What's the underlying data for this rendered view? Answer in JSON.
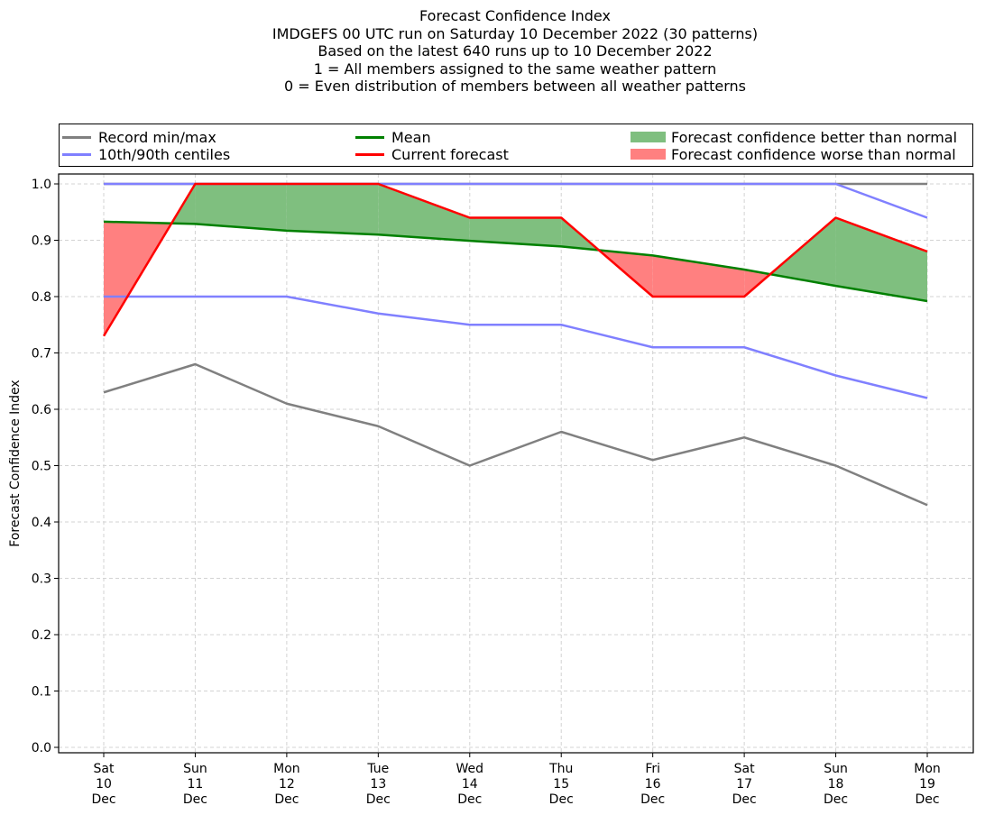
{
  "chart_data": {
    "type": "line",
    "title_lines": [
      "Forecast Confidence Index",
      "IMDGEFS 00 UTC run on Saturday 10 December 2022 (30 patterns)",
      "Based on the latest 640 runs up to 10 December 2022",
      "1 = All members assigned to the same weather pattern",
      "0 = Even distribution of members between all weather patterns"
    ],
    "ylabel": "Forecast Confidence Index",
    "xlabel": "",
    "ylim": [
      0,
      1.0
    ],
    "yticks": [
      "0.0",
      "0.1",
      "0.2",
      "0.3",
      "0.4",
      "0.5",
      "0.6",
      "0.7",
      "0.8",
      "0.9",
      "1.0"
    ],
    "grid": true,
    "legend_placement": "top, above plot",
    "categories": [
      [
        "Sat",
        "10",
        "Dec"
      ],
      [
        "Sun",
        "11",
        "Dec"
      ],
      [
        "Mon",
        "12",
        "Dec"
      ],
      [
        "Tue",
        "13",
        "Dec"
      ],
      [
        "Wed",
        "14",
        "Dec"
      ],
      [
        "Thu",
        "15",
        "Dec"
      ],
      [
        "Fri",
        "16",
        "Dec"
      ],
      [
        "Sat",
        "17",
        "Dec"
      ],
      [
        "Sun",
        "18",
        "Dec"
      ],
      [
        "Mon",
        "19",
        "Dec"
      ]
    ],
    "series": [
      {
        "name": "Record min",
        "legend": "Record min/max",
        "color": "#808080",
        "values": [
          0.63,
          0.68,
          0.61,
          0.57,
          0.5,
          0.56,
          0.51,
          0.55,
          0.5,
          0.43
        ]
      },
      {
        "name": "Record max",
        "color": "#808080",
        "values": [
          1.0,
          1.0,
          1.0,
          1.0,
          1.0,
          1.0,
          1.0,
          1.0,
          1.0,
          1.0
        ]
      },
      {
        "name": "10th centile",
        "legend": "10th/90th centiles",
        "color": "#8080ff",
        "values": [
          0.8,
          0.8,
          0.8,
          0.77,
          0.75,
          0.75,
          0.71,
          0.71,
          0.66,
          0.62
        ]
      },
      {
        "name": "90th centile",
        "color": "#8080ff",
        "values": [
          1.0,
          1.0,
          1.0,
          1.0,
          1.0,
          1.0,
          1.0,
          1.0,
          1.0,
          0.94
        ]
      },
      {
        "name": "Mean",
        "legend": "Mean",
        "color": "#008000",
        "values": [
          0.933,
          0.929,
          0.917,
          0.91,
          0.899,
          0.889,
          0.873,
          0.848,
          0.819,
          0.792
        ]
      },
      {
        "name": "Current forecast",
        "legend": "Current forecast",
        "color": "#ff0000",
        "values": [
          0.73,
          1.0,
          1.0,
          1.0,
          0.94,
          0.94,
          0.8,
          0.8,
          0.94,
          0.88
        ]
      }
    ],
    "fills": {
      "better": {
        "legend": "Forecast confidence better than normal",
        "color": "#7fbf7f"
      },
      "worse": {
        "legend": "Forecast confidence worse than normal",
        "color": "#ff8080"
      }
    }
  }
}
